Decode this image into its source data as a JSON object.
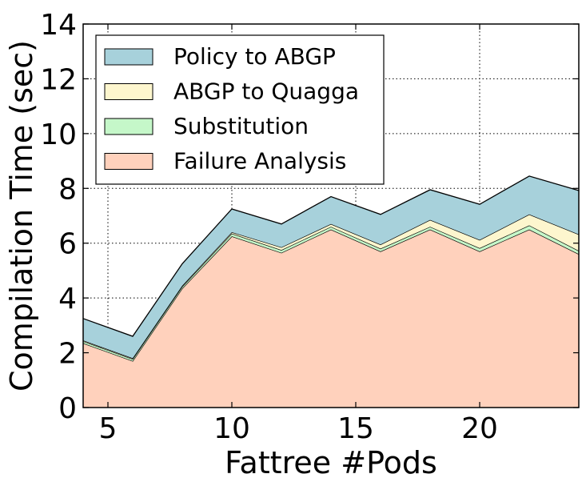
{
  "chart_data": {
    "type": "area",
    "stacked": true,
    "xlabel": "Fattree #Pods",
    "ylabel": "Compilation Time (sec)",
    "xlim": [
      4,
      24
    ],
    "ylim": [
      0,
      14
    ],
    "xticks": [
      5,
      10,
      15,
      20
    ],
    "yticks": [
      0,
      2,
      4,
      6,
      8,
      10,
      12,
      14
    ],
    "grid": true,
    "legend_position": "top-left",
    "x": [
      4,
      6,
      8,
      10,
      12,
      14,
      16,
      18,
      20,
      22,
      24
    ],
    "series": [
      {
        "name": "Failure Analysis",
        "color": "#ffd1bc",
        "values": [
          2.35,
          1.7,
          4.35,
          6.25,
          5.65,
          6.5,
          5.7,
          6.5,
          5.7,
          6.5,
          5.6
        ]
      },
      {
        "name": "Substitution",
        "color": "#c5f7c9",
        "values": [
          0.07,
          0.07,
          0.07,
          0.1,
          0.1,
          0.1,
          0.1,
          0.1,
          0.12,
          0.15,
          0.12
        ]
      },
      {
        "name": "ABGP to Quagga",
        "color": "#fdf6ce",
        "values": [
          0.03,
          0.03,
          0.03,
          0.05,
          0.1,
          0.1,
          0.15,
          0.25,
          0.3,
          0.4,
          0.6
        ]
      },
      {
        "name": "Policy to ABGP",
        "color": "#a7d1db",
        "values": [
          0.8,
          0.8,
          0.8,
          0.85,
          0.85,
          1.0,
          1.1,
          1.1,
          1.3,
          1.4,
          1.6
        ]
      }
    ]
  }
}
